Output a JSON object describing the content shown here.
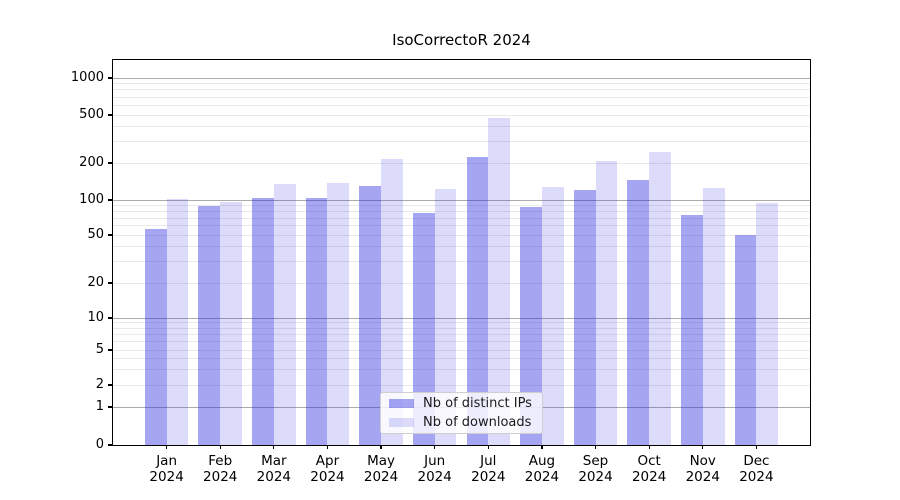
{
  "title": "IsoCorrectoR 2024",
  "chart_data": {
    "type": "bar",
    "title": "IsoCorrectoR 2024",
    "categories": [
      "Jan",
      "Feb",
      "Mar",
      "Apr",
      "May",
      "Jun",
      "Jul",
      "Aug",
      "Sep",
      "Oct",
      "Nov",
      "Dec"
    ],
    "year_suffix": "2024",
    "series": [
      {
        "name": "Nb of distinct IPs",
        "values": [
          56,
          88,
          103,
          103,
          130,
          77,
          226,
          87,
          120,
          145,
          75,
          50
        ]
      },
      {
        "name": "Nb of downloads",
        "values": [
          101,
          96,
          134,
          137,
          215,
          123,
          475,
          128,
          209,
          248,
          125,
          94
        ]
      }
    ],
    "y_axis": {
      "ticks": [
        0,
        1,
        2,
        5,
        10,
        20,
        50,
        100,
        200,
        500,
        1000
      ],
      "scale": "symlog",
      "ylim": [
        0,
        1400
      ],
      "grid": "on"
    },
    "legend_position": "bottom-center",
    "colors": {
      "bar_distinct_ips": "rgba(40,40,224,0.42)",
      "bar_downloads": "rgba(40,40,224,0.16)",
      "bar_distinct_ips_flat": "#a4a4f2",
      "bar_downloads_flat": "#dcdcfa",
      "grid_major": "#ababab",
      "grid_minor": "#e9e9e9",
      "axis": "#000000"
    }
  }
}
